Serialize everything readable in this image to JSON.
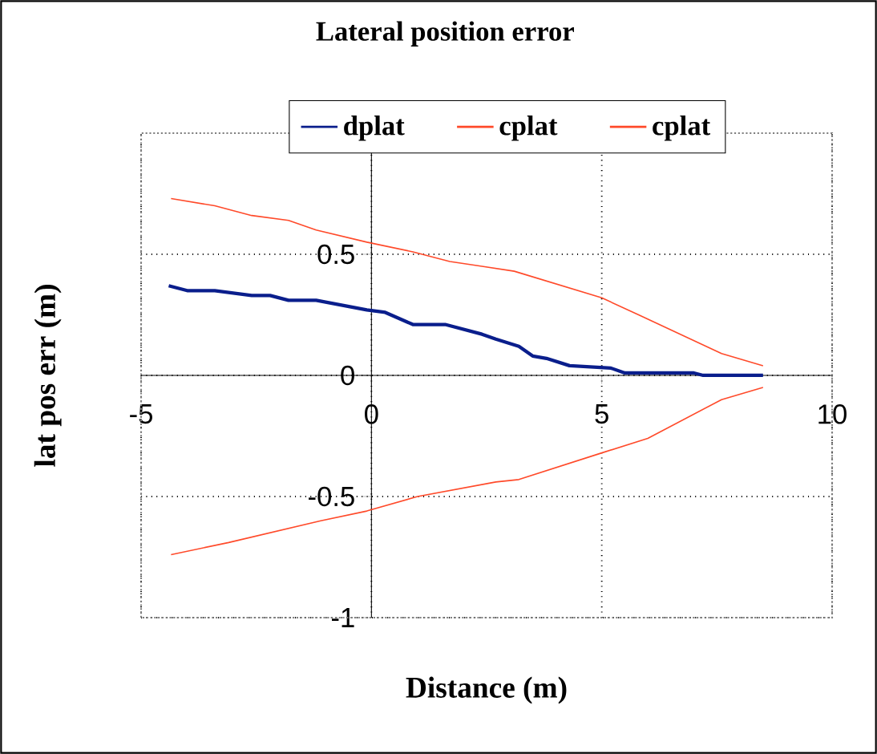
{
  "chart_data": {
    "type": "line",
    "title": "Lateral position error",
    "xlabel": "Distance (m)",
    "ylabel": "lat pos err (m)",
    "xlim": [
      -5,
      10
    ],
    "ylim": [
      -1,
      1
    ],
    "xticks": [
      -5,
      0,
      5,
      10
    ],
    "yticks": [
      -1,
      -0.5,
      0,
      0.5
    ],
    "grid": true,
    "legend": "top",
    "series": [
      {
        "name": "dplat",
        "color": "#0a1e8c",
        "x": [
          -4.4,
          -4.0,
          -3.4,
          -2.6,
          -2.2,
          -1.8,
          -1.2,
          -0.1,
          0.3,
          0.9,
          1.6,
          2.4,
          2.7,
          3.2,
          3.5,
          3.8,
          4.3,
          5.2,
          5.5,
          7.0,
          7.2,
          8.5
        ],
        "values": [
          0.37,
          0.35,
          0.35,
          0.33,
          0.33,
          0.31,
          0.31,
          0.27,
          0.26,
          0.21,
          0.21,
          0.17,
          0.15,
          0.12,
          0.08,
          0.07,
          0.04,
          0.03,
          0.01,
          0.01,
          0.0,
          0.0
        ]
      },
      {
        "name": "cplat",
        "color": "#ff4a2a",
        "x": [
          -4.35,
          -3.4,
          -2.6,
          -1.8,
          -1.2,
          -0.1,
          0.9,
          1.7,
          2.4,
          3.1,
          5.0,
          5.8,
          7.6,
          8.5
        ],
        "values": [
          0.73,
          0.7,
          0.66,
          0.64,
          0.6,
          0.55,
          0.51,
          0.47,
          0.45,
          0.43,
          0.32,
          0.25,
          0.09,
          0.04
        ]
      },
      {
        "name": "cplat",
        "color": "#ff4a2a",
        "x": [
          -4.35,
          -3.1,
          -1.1,
          -0.1,
          1.0,
          2.7,
          3.2,
          5.0,
          6.0,
          7.6,
          8.5
        ],
        "values": [
          -0.74,
          -0.69,
          -0.6,
          -0.56,
          -0.5,
          -0.44,
          -0.43,
          -0.32,
          -0.26,
          -0.1,
          -0.05
        ]
      }
    ]
  }
}
